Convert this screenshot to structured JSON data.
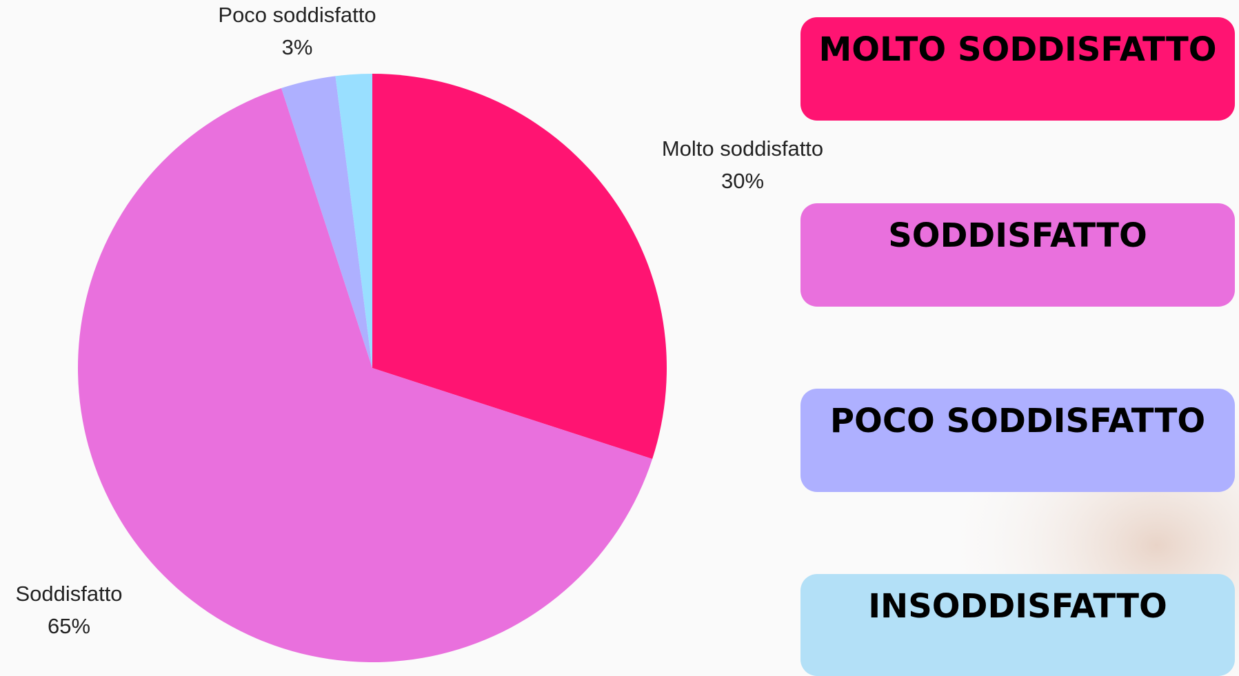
{
  "chart_data": {
    "type": "pie",
    "categories": [
      "Molto soddisfatto",
      "Soddisfatto",
      "Poco soddisfatto",
      null
    ],
    "values": [
      30,
      65,
      3,
      2
    ],
    "value_labels": [
      "30%",
      "65%",
      "3%",
      null
    ],
    "colors": [
      "#ff1472",
      "#e970dd",
      "#aeb0ff",
      "#99dfff"
    ],
    "legend": [
      {
        "name": "MOLTO SODDISFATTO",
        "color": "#ff1472"
      },
      {
        "name": "SODDISFATTO",
        "color": "#e970dd"
      },
      {
        "name": "POCO SODDISFATTO",
        "color": "#aeb0ff"
      },
      {
        "name": "INSODDISFATTO",
        "color": "#b3e0f7"
      }
    ]
  }
}
